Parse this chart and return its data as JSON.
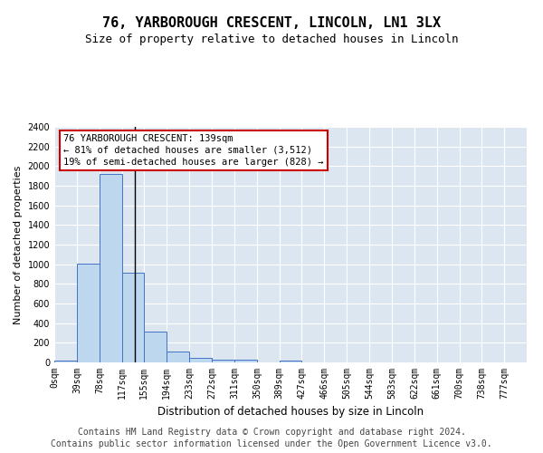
{
  "title": "76, YARBOROUGH CRESCENT, LINCOLN, LN1 3LX",
  "subtitle": "Size of property relative to detached houses in Lincoln",
  "xlabel": "Distribution of detached houses by size in Lincoln",
  "ylabel": "Number of detached properties",
  "footer_line1": "Contains HM Land Registry data © Crown copyright and database right 2024.",
  "footer_line2": "Contains public sector information licensed under the Open Government Licence v3.0.",
  "annotation_line1": "76 YARBOROUGH CRESCENT: 139sqm",
  "annotation_line2": "← 81% of detached houses are smaller (3,512)",
  "annotation_line3": "19% of semi-detached houses are larger (828) →",
  "property_size": 139,
  "bar_categories": [
    "0sqm",
    "39sqm",
    "78sqm",
    "117sqm",
    "155sqm",
    "194sqm",
    "233sqm",
    "272sqm",
    "311sqm",
    "350sqm",
    "389sqm",
    "427sqm",
    "466sqm",
    "505sqm",
    "544sqm",
    "583sqm",
    "622sqm",
    "661sqm",
    "700sqm",
    "738sqm",
    "777sqm"
  ],
  "bar_left_edges": [
    0,
    39,
    78,
    117,
    155,
    194,
    233,
    272,
    311,
    350,
    389,
    427,
    466,
    505,
    544,
    583,
    622,
    661,
    700,
    738,
    777
  ],
  "bar_widths": [
    39,
    39,
    39,
    38,
    39,
    39,
    39,
    39,
    39,
    39,
    38,
    39,
    39,
    39,
    39,
    39,
    39,
    39,
    38,
    39,
    39
  ],
  "bar_heights": [
    20,
    1010,
    1920,
    910,
    310,
    110,
    50,
    30,
    30,
    0,
    20,
    0,
    0,
    0,
    0,
    0,
    0,
    0,
    0,
    0,
    0
  ],
  "bar_color": "#bdd7ee",
  "bar_edge_color": "#4472c4",
  "vline_x": 139,
  "vline_color": "#000000",
  "ylim": [
    0,
    2400
  ],
  "xlim": [
    0,
    816
  ],
  "bg_color": "#dce6f1",
  "grid_color": "#ffffff",
  "fig_bg_color": "#ffffff",
  "annotation_box_edge_color": "#cc0000",
  "title_fontsize": 11,
  "subtitle_fontsize": 9,
  "ylabel_fontsize": 8,
  "xlabel_fontsize": 8.5,
  "tick_fontsize": 7,
  "annotation_fontsize": 7.5,
  "footer_fontsize": 7
}
